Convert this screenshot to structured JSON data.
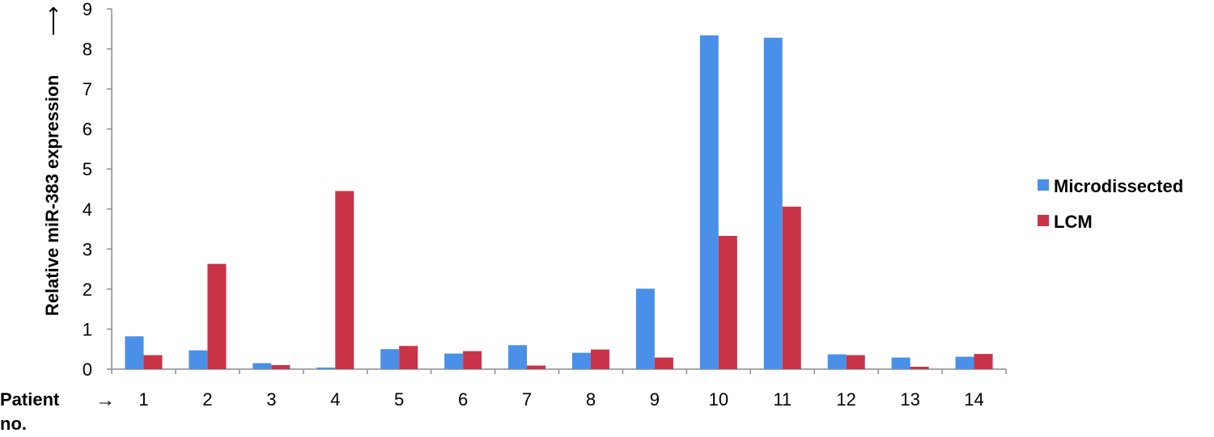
{
  "chart_data": {
    "type": "bar",
    "title": "",
    "ylabel": "Relative miR-383 expression",
    "ylabel_arrow": "⟶",
    "xlabel": "Patient no.",
    "xlabel_line1": "Patient",
    "xlabel_line2": "no.",
    "xlabel_arrow": "→",
    "ylim": [
      0,
      9
    ],
    "yticks": [
      0,
      1,
      2,
      3,
      4,
      5,
      6,
      7,
      8,
      9
    ],
    "grid": false,
    "legend_position": "right",
    "categories": [
      "1",
      "2",
      "3",
      "4",
      "5",
      "6",
      "7",
      "8",
      "9",
      "10",
      "11",
      "12",
      "13",
      "14"
    ],
    "series": [
      {
        "name": "Microdissected",
        "color": "#4a90e8",
        "values": [
          0.82,
          0.47,
          0.15,
          0.04,
          0.5,
          0.39,
          0.6,
          0.41,
          2.01,
          8.34,
          8.28,
          0.37,
          0.29,
          0.31
        ]
      },
      {
        "name": "LCM",
        "color": "#c83348",
        "values": [
          0.35,
          2.63,
          0.1,
          4.45,
          0.58,
          0.45,
          0.09,
          0.49,
          0.29,
          3.33,
          4.06,
          0.35,
          0.06,
          0.38
        ]
      }
    ]
  }
}
